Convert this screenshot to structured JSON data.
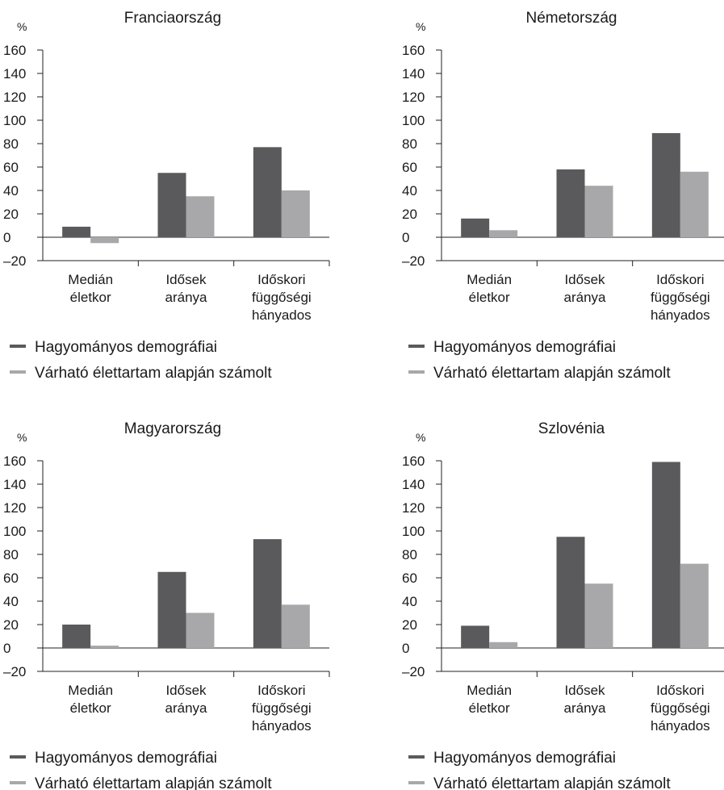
{
  "colors": {
    "series1": "#5a5a5c",
    "series2": "#a8a8aa",
    "axis": "#222222",
    "text": "#1a1a1a"
  },
  "chart_data": [
    {
      "type": "bar",
      "title": "Franciaország",
      "ylabel": "%",
      "ylim": [
        -20,
        160
      ],
      "yticks": [
        "160",
        "140",
        "120",
        "100",
        "80",
        "60",
        "40",
        "20",
        "0",
        "–20"
      ],
      "categories": [
        [
          "Medián",
          "életkor"
        ],
        [
          "Idősek",
          "aránya"
        ],
        [
          "Időskori",
          "függőségi",
          "hányados"
        ]
      ],
      "series": [
        {
          "name": "Hagyományos demográfiai",
          "values": [
            9,
            55,
            77
          ]
        },
        {
          "name": "Várható élettartam alapján számolt",
          "values": [
            -5,
            35,
            40
          ]
        }
      ],
      "legend": "bottom-left"
    },
    {
      "type": "bar",
      "title": "Németország",
      "ylabel": "%",
      "ylim": [
        -20,
        160
      ],
      "yticks": [
        "160",
        "140",
        "120",
        "100",
        "80",
        "60",
        "40",
        "20",
        "0",
        "–20"
      ],
      "categories": [
        [
          "Medián",
          "életkor"
        ],
        [
          "Idősek",
          "aránya"
        ],
        [
          "Időskori",
          "függőségi",
          "hányados"
        ]
      ],
      "series": [
        {
          "name": "Hagyományos demográfiai",
          "values": [
            16,
            58,
            89
          ]
        },
        {
          "name": "Várható élettartam alapján számolt",
          "values": [
            6,
            44,
            56
          ]
        }
      ],
      "legend": "bottom-left"
    },
    {
      "type": "bar",
      "title": "Magyarország",
      "ylabel": "%",
      "ylim": [
        -20,
        160
      ],
      "yticks": [
        "160",
        "140",
        "120",
        "100",
        "80",
        "60",
        "40",
        "20",
        "0",
        "–20"
      ],
      "categories": [
        [
          "Medián",
          "életkor"
        ],
        [
          "Idősek",
          "aránya"
        ],
        [
          "Időskori",
          "függőségi",
          "hányados"
        ]
      ],
      "series": [
        {
          "name": "Hagyományos demográfiai",
          "values": [
            20,
            65,
            93
          ]
        },
        {
          "name": "Várható élettartam alapján számolt",
          "values": [
            2,
            30,
            37
          ]
        }
      ],
      "legend": "bottom-left"
    },
    {
      "type": "bar",
      "title": "Szlovénia",
      "ylabel": "%",
      "ylim": [
        -20,
        160
      ],
      "yticks": [
        "160",
        "140",
        "120",
        "100",
        "80",
        "60",
        "40",
        "20",
        "0",
        "–20"
      ],
      "categories": [
        [
          "Medián",
          "életkor"
        ],
        [
          "Idősek",
          "aránya"
        ],
        [
          "Időskori",
          "függőségi",
          "hányados"
        ]
      ],
      "series": [
        {
          "name": "Hagyományos demográfiai",
          "values": [
            19,
            95,
            159
          ]
        },
        {
          "name": "Várható élettartam alapján számolt",
          "values": [
            5,
            55,
            72
          ]
        }
      ],
      "legend": "bottom-left"
    }
  ]
}
